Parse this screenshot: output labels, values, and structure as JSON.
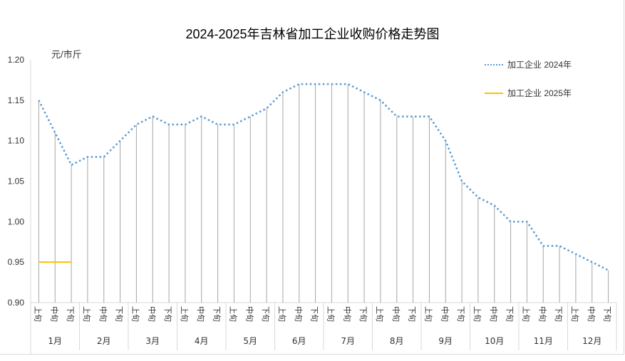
{
  "chart_data": {
    "type": "line",
    "title": "2024-2025年吉林省加工企业收购价格走势图",
    "ylabel": "元/市斤",
    "ylim": [
      0.9,
      1.2
    ],
    "yticks": [
      "0.90",
      "0.95",
      "1.00",
      "1.05",
      "1.10",
      "1.15",
      "1.20"
    ],
    "grid": false,
    "drop_lines": true,
    "legend_position": "top-right",
    "months": [
      "1月",
      "2月",
      "3月",
      "4月",
      "5月",
      "6月",
      "7月",
      "8月",
      "9月",
      "10月",
      "11月",
      "12月"
    ],
    "periods": [
      "上旬",
      "中旬",
      "下旬"
    ],
    "series": [
      {
        "name": "加工企业 2024年",
        "color": "#5b9bd5",
        "style": "dotted",
        "values": [
          1.15,
          1.11,
          1.07,
          1.08,
          1.08,
          1.1,
          1.12,
          1.13,
          1.12,
          1.12,
          1.13,
          1.12,
          1.12,
          1.13,
          1.14,
          1.16,
          1.17,
          1.17,
          1.17,
          1.17,
          1.16,
          1.15,
          1.13,
          1.13,
          1.13,
          1.1,
          1.05,
          1.03,
          1.02,
          1.0,
          1.0,
          0.97,
          0.97,
          0.96,
          0.95,
          0.94
        ]
      },
      {
        "name": "加工企业 2025年",
        "color": "#ffc000",
        "style": "solid",
        "values": [
          0.95,
          0.95,
          0.95
        ]
      }
    ]
  }
}
